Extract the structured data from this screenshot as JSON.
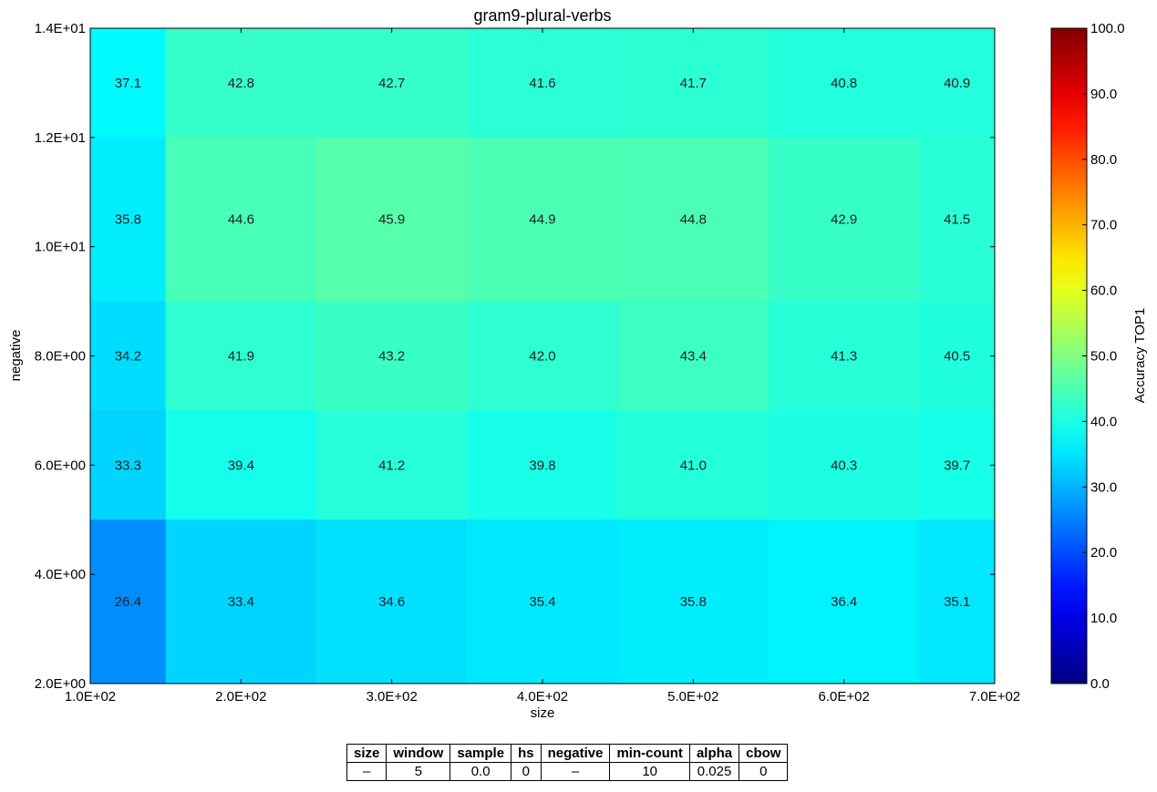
{
  "chart_data": {
    "type": "heatmap",
    "title": "gram9-plural-verbs",
    "xlabel": "size",
    "ylabel": "negative",
    "colorbar_label": "Accuracy TOP1",
    "colormap": "jet",
    "color_range": [
      0,
      100
    ],
    "x_ticks": [
      "1.0E+02",
      "2.0E+02",
      "3.0E+02",
      "4.0E+02",
      "5.0E+02",
      "6.0E+02",
      "7.0E+02"
    ],
    "y_ticks": [
      "2.0E+00",
      "4.0E+00",
      "6.0E+00",
      "8.0E+00",
      "1.0E+01",
      "1.2E+01",
      "1.4E+01"
    ],
    "colorbar_ticks": [
      "0.0",
      "10.0",
      "20.0",
      "30.0",
      "40.0",
      "50.0",
      "60.0",
      "70.0",
      "80.0",
      "90.0",
      "100.0"
    ],
    "xlim": [
      100,
      700
    ],
    "ylim": [
      2,
      14
    ],
    "x_categories": [
      100,
      200,
      300,
      400,
      500,
      600,
      700
    ],
    "y_categories": [
      14,
      10,
      8,
      6,
      4
    ],
    "values": [
      [
        37.1,
        42.8,
        42.7,
        41.6,
        41.7,
        40.8,
        40.9
      ],
      [
        35.8,
        44.6,
        45.9,
        44.9,
        44.8,
        42.9,
        41.5
      ],
      [
        34.2,
        41.9,
        43.2,
        42.0,
        43.4,
        41.3,
        40.5
      ],
      [
        33.3,
        39.4,
        41.2,
        39.8,
        41.0,
        40.3,
        39.7
      ],
      [
        26.4,
        33.4,
        34.6,
        35.4,
        35.8,
        36.4,
        35.1
      ]
    ],
    "labels": [
      [
        "37.1",
        "42.8",
        "42.7",
        "41.6",
        "41.7",
        "40.8",
        "40.9"
      ],
      [
        "35.8",
        "44.6",
        "45.9",
        "44.9",
        "44.8",
        "42.9",
        "41.5"
      ],
      [
        "34.2",
        "41.9",
        "43.2",
        "42.0",
        "43.4",
        "41.3",
        "40.5"
      ],
      [
        "33.3",
        "39.4",
        "41.2",
        "39.8",
        "41.0",
        "40.3",
        "39.7"
      ],
      [
        "26.4",
        "33.4",
        "34.6",
        "35.4",
        "35.8",
        "36.4",
        "35.1"
      ]
    ]
  },
  "params_table": {
    "headers": [
      "size",
      "window",
      "sample",
      "hs",
      "negative",
      "min-count",
      "alpha",
      "cbow"
    ],
    "values": [
      "–",
      "5",
      "0.0",
      "0",
      "–",
      "10",
      "0.025",
      "0"
    ]
  }
}
